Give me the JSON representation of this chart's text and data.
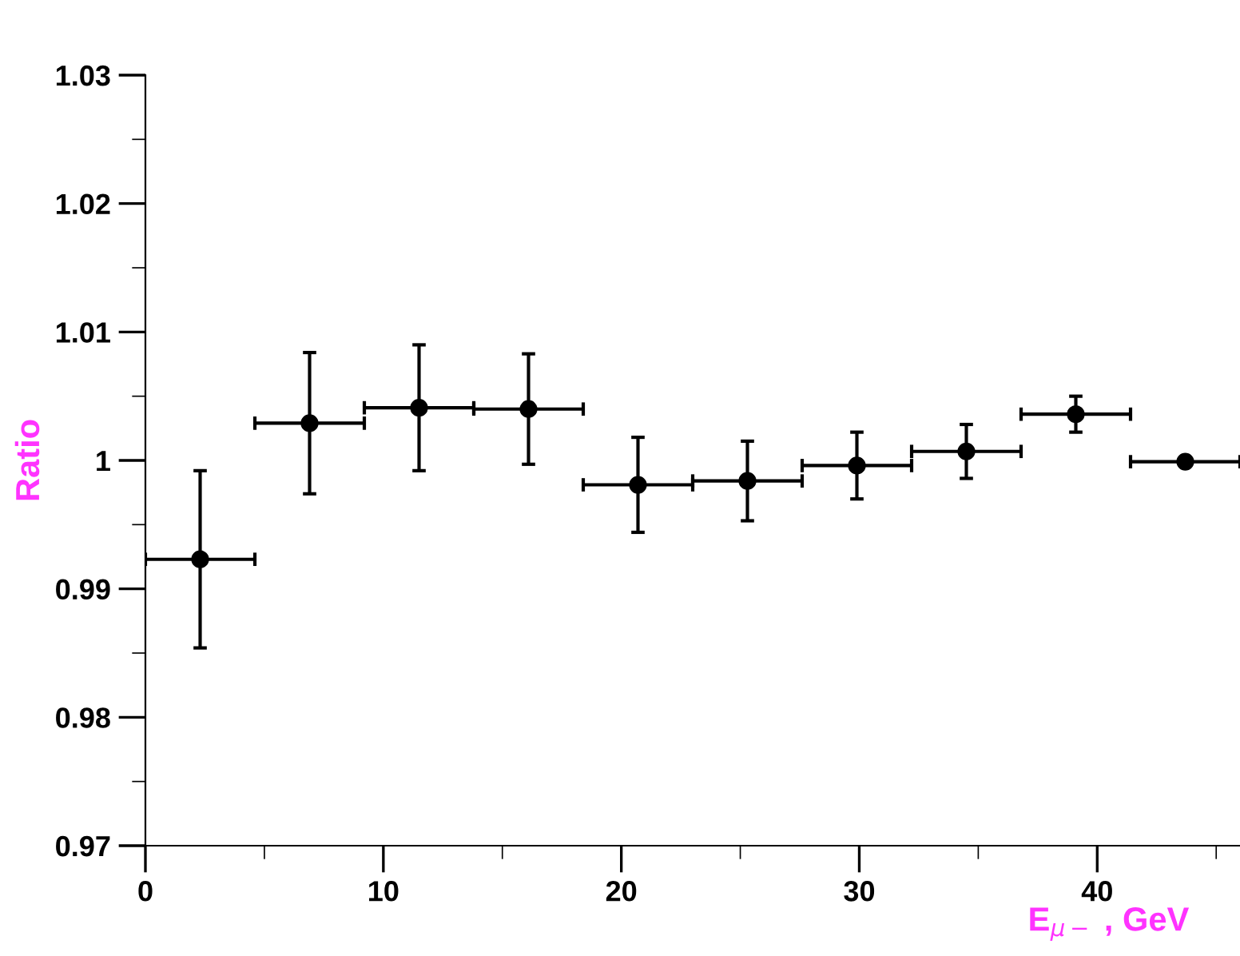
{
  "chart_data": {
    "type": "scatter",
    "xlabel": "E$_{μ−}$ , GeV",
    "ylabel": "Ratio",
    "x": [
      2.3,
      6.9,
      11.5,
      16.1,
      20.7,
      25.3,
      29.9,
      34.5,
      39.1,
      43.7
    ],
    "series": [
      {
        "color": "#000000",
        "values": [
          0.9923,
          1.0029,
          1.0041,
          1.004,
          0.9981,
          0.9984,
          0.9996,
          1.0007,
          1.0036,
          0.9999
        ],
        "errors": [
          0.0069,
          0.0055,
          0.0049,
          0.0043,
          0.0037,
          0.0031,
          0.0026,
          0.0021,
          0.0014,
          null
        ],
        "xerrors": [
          2.3,
          2.3,
          2.3,
          2.3,
          2.3,
          2.3,
          2.3,
          2.3,
          2.3,
          2.3
        ]
      }
    ],
    "xlim": [
      0,
      46
    ],
    "ylim": [
      0.97,
      1.03
    ],
    "xticks": [
      0,
      10,
      20,
      30,
      40
    ],
    "yticks": [
      0.97,
      0.98,
      0.99,
      {
        "value": 1.0,
        "label": "1"
      },
      1.01,
      1.02,
      1.03
    ],
    "marker": "circle",
    "grid": false,
    "legend": false
  }
}
